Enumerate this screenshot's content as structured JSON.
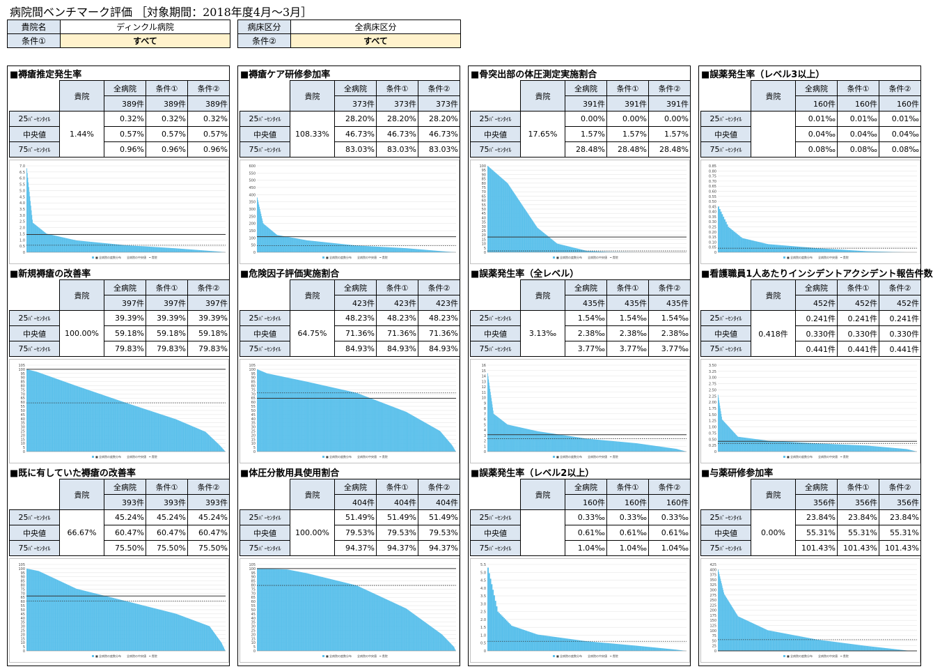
{
  "title": "病院間ベンチマーク評価 ［対象期間：2018年度4月～3月］",
  "header": {
    "hospital_label": "貴院名",
    "hospital_value": "ディンクル病院",
    "bed_label": "病床区分",
    "bed_value": "全病床区分",
    "cond1_label": "条件①",
    "cond1_value": "すべて",
    "cond2_label": "条件②",
    "cond2_value": "すべて"
  },
  "labels": {
    "kiin": "貴院",
    "all": "全病院",
    "c1": "条件①",
    "c2": "条件②",
    "p25": "25",
    "p25_sub": "ﾊﾟｰｾﾝﾀｲﾙ",
    "median": "中央値",
    "p75": "75",
    "p75_sub": "ﾊﾟｰｾﾝﾀｲﾙ",
    "legend": "■ 全病院の度数分布　　全病院の中央値　━ 貴院"
  },
  "sections": [
    {
      "title": "■褥瘡推定発生率",
      "kiin": "1.44%",
      "counts": [
        "389件",
        "389件",
        "389件"
      ],
      "p25": [
        "0.32%",
        "0.32%",
        "0.32%"
      ],
      "median": [
        "0.57%",
        "0.57%",
        "0.57%"
      ],
      "p75": [
        "0.96%",
        "0.96%",
        "0.96%"
      ]
    },
    {
      "title": "■新規褥瘡の改善率",
      "kiin": "100.00%",
      "counts": [
        "397件",
        "397件",
        "397件"
      ],
      "p25": [
        "39.39%",
        "39.39%",
        "39.39%"
      ],
      "median": [
        "59.18%",
        "59.18%",
        "59.18%"
      ],
      "p75": [
        "79.83%",
        "79.83%",
        "79.83%"
      ]
    },
    {
      "title": "■既に有していた褥瘡の改善率",
      "kiin": "66.67%",
      "counts": [
        "393件",
        "393件",
        "393件"
      ],
      "p25": [
        "45.24%",
        "45.24%",
        "45.24%"
      ],
      "median": [
        "60.47%",
        "60.47%",
        "60.47%"
      ],
      "p75": [
        "75.50%",
        "75.50%",
        "75.50%"
      ]
    },
    {
      "title": "■褥瘡ケア研修参加率",
      "kiin": "108.33%",
      "counts": [
        "373件",
        "373件",
        "373件"
      ],
      "p25": [
        "28.20%",
        "28.20%",
        "28.20%"
      ],
      "median": [
        "46.73%",
        "46.73%",
        "46.73%"
      ],
      "p75": [
        "83.03%",
        "83.03%",
        "83.03%"
      ]
    },
    {
      "title": "■危険因子評価実施割合",
      "kiin": "64.75%",
      "counts": [
        "423件",
        "423件",
        "423件"
      ],
      "p25": [
        "48.23%",
        "48.23%",
        "48.23%"
      ],
      "median": [
        "71.36%",
        "71.36%",
        "71.36%"
      ],
      "p75": [
        "84.93%",
        "84.93%",
        "84.93%"
      ]
    },
    {
      "title": "■体圧分散用具使用割合",
      "kiin": "100.00%",
      "counts": [
        "404件",
        "404件",
        "404件"
      ],
      "p25": [
        "51.49%",
        "51.49%",
        "51.49%"
      ],
      "median": [
        "79.53%",
        "79.53%",
        "79.53%"
      ],
      "p75": [
        "94.37%",
        "94.37%",
        "94.37%"
      ]
    },
    {
      "title": "■骨突出部の体圧測定実施割合",
      "kiin": "17.65%",
      "counts": [
        "391件",
        "391件",
        "391件"
      ],
      "p25": [
        "0.00%",
        "0.00%",
        "0.00%"
      ],
      "median": [
        "1.57%",
        "1.57%",
        "1.57%"
      ],
      "p75": [
        "28.48%",
        "28.48%",
        "28.48%"
      ]
    },
    {
      "title": "■誤薬発生率（全レベル）",
      "kiin": "3.13‰",
      "counts": [
        "435件",
        "435件",
        "435件"
      ],
      "p25": [
        "1.54‰",
        "1.54‰",
        "1.54‰"
      ],
      "median": [
        "2.38‰",
        "2.38‰",
        "2.38‰"
      ],
      "p75": [
        "3.77‰",
        "3.77‰",
        "3.77‰"
      ]
    },
    {
      "title": "■誤薬発生率（レベル2以上）",
      "kiin": "",
      "counts": [
        "160件",
        "160件",
        "160件"
      ],
      "p25": [
        "0.33‰",
        "0.33‰",
        "0.33‰"
      ],
      "median": [
        "0.61‰",
        "0.61‰",
        "0.61‰"
      ],
      "p75": [
        "1.04‰",
        "1.04‰",
        "1.04‰"
      ]
    },
    {
      "title": "■誤薬発生率（レベル3以上）",
      "kiin": "",
      "counts": [
        "160件",
        "160件",
        "160件"
      ],
      "p25": [
        "0.01‰",
        "0.01‰",
        "0.01‰"
      ],
      "median": [
        "0.04‰",
        "0.04‰",
        "0.04‰"
      ],
      "p75": [
        "0.08‰",
        "0.08‰",
        "0.08‰"
      ]
    },
    {
      "title": "■看護職員1人あたりインシデントアクシデント報告件数",
      "kiin": "0.418件",
      "counts": [
        "452件",
        "452件",
        "452件"
      ],
      "p25": [
        "0.241件",
        "0.241件",
        "0.241件"
      ],
      "median": [
        "0.330件",
        "0.330件",
        "0.330件"
      ],
      "p75": [
        "0.441件",
        "0.441件",
        "0.441件"
      ]
    },
    {
      "title": "■与薬研修参加率",
      "kiin": "0.00%",
      "counts": [
        "356件",
        "356件",
        "356件"
      ],
      "p25": [
        "23.84%",
        "23.84%",
        "23.84%"
      ],
      "median": [
        "55.31%",
        "55.31%",
        "55.31%"
      ],
      "p75": [
        "101.43%",
        "101.43%",
        "101.43%"
      ]
    }
  ],
  "chart_data": [
    {
      "type": "area",
      "ylim": [
        0,
        7
      ],
      "yticks": [
        "0",
        "0.5",
        "1.0",
        "1.5",
        "2.0",
        "2.5",
        "3.0",
        "3.5",
        "4.0",
        "4.5",
        "5.0",
        "5.5",
        "6.0",
        "6.5",
        "7.0"
      ],
      "n": 389,
      "kiin": 1.44,
      "median": 0.57,
      "quantiles": [
        [
          0,
          6.8
        ],
        [
          0.03,
          2.4
        ],
        [
          0.1,
          1.5
        ],
        [
          0.25,
          0.96
        ],
        [
          0.5,
          0.57
        ],
        [
          0.75,
          0.32
        ],
        [
          0.97,
          0.05
        ],
        [
          1,
          0
        ]
      ],
      "color": "#5bc0eb"
    },
    {
      "type": "area",
      "ylim": [
        0,
        105
      ],
      "yticks": [
        "0",
        "5",
        "10",
        "15",
        "20",
        "25",
        "30",
        "35",
        "40",
        "45",
        "50",
        "55",
        "60",
        "65",
        "70",
        "75",
        "80",
        "85",
        "90",
        "95",
        "100",
        "105"
      ],
      "n": 397,
      "kiin": 100,
      "median": 59.18,
      "quantiles": [
        [
          0,
          100
        ],
        [
          0.05,
          97
        ],
        [
          0.25,
          79.83
        ],
        [
          0.5,
          59.18
        ],
        [
          0.75,
          39.39
        ],
        [
          0.9,
          24
        ],
        [
          0.97,
          8
        ],
        [
          1,
          0
        ]
      ],
      "color": "#5bc0eb"
    },
    {
      "type": "area",
      "ylim": [
        0,
        105
      ],
      "yticks": [
        "0",
        "5",
        "10",
        "15",
        "20",
        "25",
        "30",
        "35",
        "40",
        "45",
        "50",
        "55",
        "60",
        "65",
        "70",
        "75",
        "80",
        "85",
        "90",
        "95",
        "100",
        "105"
      ],
      "n": 393,
      "kiin": 66.67,
      "median": 60.47,
      "quantiles": [
        [
          0,
          100
        ],
        [
          0.06,
          97
        ],
        [
          0.25,
          75.5
        ],
        [
          0.5,
          60.47
        ],
        [
          0.75,
          45.24
        ],
        [
          0.92,
          30
        ],
        [
          0.98,
          10
        ],
        [
          1,
          0
        ]
      ],
      "color": "#5bc0eb"
    },
    {
      "type": "area",
      "ylim": [
        0,
        600
      ],
      "yticks": [
        "0",
        "50",
        "100",
        "150",
        "200",
        "250",
        "300",
        "350",
        "400",
        "450",
        "500",
        "550",
        "600"
      ],
      "n": 373,
      "kiin": 108.33,
      "median": 46.73,
      "quantiles": [
        [
          0,
          380
        ],
        [
          0.03,
          200
        ],
        [
          0.1,
          120
        ],
        [
          0.25,
          83.03
        ],
        [
          0.5,
          46.73
        ],
        [
          0.75,
          28.2
        ],
        [
          0.95,
          5
        ],
        [
          1,
          0
        ]
      ],
      "color": "#5bc0eb"
    },
    {
      "type": "area",
      "ylim": [
        0,
        105
      ],
      "yticks": [
        "0",
        "5",
        "10",
        "15",
        "20",
        "25",
        "30",
        "35",
        "40",
        "45",
        "50",
        "55",
        "60",
        "65",
        "70",
        "75",
        "80",
        "85",
        "90",
        "95",
        "100",
        "105"
      ],
      "n": 423,
      "kiin": 64.75,
      "median": 71.36,
      "quantiles": [
        [
          0,
          100
        ],
        [
          0.05,
          95
        ],
        [
          0.25,
          84.93
        ],
        [
          0.5,
          71.36
        ],
        [
          0.75,
          48.23
        ],
        [
          0.92,
          25
        ],
        [
          0.98,
          8
        ],
        [
          1,
          0
        ]
      ],
      "color": "#5bc0eb"
    },
    {
      "type": "area",
      "ylim": [
        0,
        105
      ],
      "yticks": [
        "0",
        "5",
        "10",
        "15",
        "20",
        "25",
        "30",
        "35",
        "40",
        "45",
        "50",
        "55",
        "60",
        "65",
        "70",
        "75",
        "80",
        "85",
        "90",
        "95",
        "100",
        "105"
      ],
      "n": 404,
      "kiin": 100,
      "median": 79.53,
      "quantiles": [
        [
          0,
          100
        ],
        [
          0.15,
          99
        ],
        [
          0.25,
          94.37
        ],
        [
          0.5,
          79.53
        ],
        [
          0.75,
          51.49
        ],
        [
          0.93,
          20
        ],
        [
          0.99,
          5
        ],
        [
          1,
          0
        ]
      ],
      "color": "#5bc0eb"
    },
    {
      "type": "area",
      "ylim": [
        0,
        100
      ],
      "yticks": [
        "0",
        "5",
        "10",
        "15",
        "20",
        "25",
        "30",
        "35",
        "40",
        "45",
        "50",
        "55",
        "60",
        "65",
        "70",
        "75",
        "80",
        "85",
        "90",
        "95",
        "100"
      ],
      "n": 391,
      "kiin": 17.65,
      "median": 1.57,
      "quantiles": [
        [
          0,
          100
        ],
        [
          0.1,
          80
        ],
        [
          0.25,
          28.48
        ],
        [
          0.35,
          10
        ],
        [
          0.5,
          1.57
        ],
        [
          0.6,
          0.5
        ],
        [
          0.75,
          0
        ],
        [
          1,
          0
        ]
      ],
      "color": "#5bc0eb"
    },
    {
      "type": "area",
      "ylim": [
        0,
        16
      ],
      "yticks": [
        "0",
        "1",
        "2",
        "3",
        "4",
        "5",
        "6",
        "7",
        "8",
        "9",
        "10",
        "11",
        "12",
        "13",
        "14",
        "15",
        "16"
      ],
      "n": 435,
      "kiin": 3.13,
      "median": 2.38,
      "quantiles": [
        [
          0,
          14.5
        ],
        [
          0.03,
          7
        ],
        [
          0.1,
          5
        ],
        [
          0.25,
          3.77
        ],
        [
          0.5,
          2.38
        ],
        [
          0.75,
          1.54
        ],
        [
          0.95,
          0.5
        ],
        [
          1,
          0
        ]
      ],
      "color": "#5bc0eb"
    },
    {
      "type": "area",
      "ylim": [
        0,
        5.5
      ],
      "yticks": [
        "0",
        "0.5",
        "1.0",
        "1.5",
        "2.0",
        "2.5",
        "3.0",
        "3.5",
        "4.0",
        "4.5",
        "5.0",
        "5.5"
      ],
      "n": 160,
      "kiin": null,
      "median": 0.61,
      "quantiles": [
        [
          0,
          5.3
        ],
        [
          0.05,
          2.5
        ],
        [
          0.12,
          1.6
        ],
        [
          0.25,
          1.04
        ],
        [
          0.5,
          0.61
        ],
        [
          0.75,
          0.33
        ],
        [
          0.95,
          0.08
        ],
        [
          1,
          0
        ]
      ],
      "color": "#5bc0eb"
    },
    {
      "type": "area",
      "ylim": [
        0,
        0.85
      ],
      "yticks": [
        "0",
        "0.05",
        "0.10",
        "0.15",
        "0.20",
        "0.25",
        "0.30",
        "0.35",
        "0.40",
        "0.45",
        "0.50",
        "0.55",
        "0.60",
        "0.65",
        "0.70",
        "0.75",
        "0.80",
        "0.85"
      ],
      "n": 160,
      "kiin": null,
      "median": 0.04,
      "quantiles": [
        [
          0,
          0.45
        ],
        [
          0.05,
          0.25
        ],
        [
          0.12,
          0.14
        ],
        [
          0.25,
          0.08
        ],
        [
          0.5,
          0.04
        ],
        [
          0.75,
          0.01
        ],
        [
          0.95,
          0
        ],
        [
          1,
          0
        ]
      ],
      "color": "#5bc0eb"
    },
    {
      "type": "area",
      "ylim": [
        0,
        3.5
      ],
      "yticks": [
        "0",
        "0.25",
        "0.50",
        "0.75",
        "1.00",
        "1.25",
        "1.50",
        "1.75",
        "2.00",
        "2.25",
        "2.50",
        "2.75",
        "3.00",
        "3.25",
        "3.50"
      ],
      "n": 452,
      "kiin": 0.418,
      "median": 0.33,
      "quantiles": [
        [
          0,
          2.3
        ],
        [
          0.02,
          1.3
        ],
        [
          0.1,
          0.6
        ],
        [
          0.25,
          0.441
        ],
        [
          0.5,
          0.33
        ],
        [
          0.75,
          0.241
        ],
        [
          0.95,
          0.1
        ],
        [
          1,
          0
        ]
      ],
      "color": "#5bc0eb"
    },
    {
      "type": "area",
      "ylim": [
        0,
        425
      ],
      "yticks": [
        "0",
        "25",
        "50",
        "75",
        "100",
        "125",
        "150",
        "175",
        "200",
        "225",
        "250",
        "275",
        "300",
        "325",
        "350",
        "375",
        "400",
        "425"
      ],
      "n": 356,
      "kiin": 0,
      "median": 55.31,
      "quantiles": [
        [
          0,
          400
        ],
        [
          0.03,
          280
        ],
        [
          0.1,
          170
        ],
        [
          0.25,
          101.43
        ],
        [
          0.5,
          55.31
        ],
        [
          0.75,
          23.84
        ],
        [
          0.95,
          2
        ],
        [
          1,
          0
        ]
      ],
      "color": "#5bc0eb"
    }
  ]
}
